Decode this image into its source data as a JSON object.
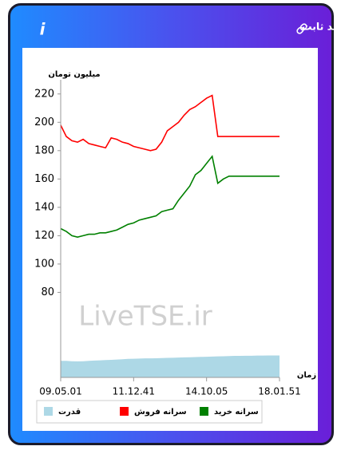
{
  "chart_data": {
    "type": "line",
    "title": "سرانه ی خرید و فروش حقیقی در صندوق های درآمد ثابت",
    "y_label": "میلیون تومان",
    "x_label": "زمان",
    "watermark": "LiveTSE.ir",
    "categories": [
      "09.05.01",
      null,
      null,
      null,
      null,
      null,
      null,
      null,
      null,
      null,
      null,
      null,
      null,
      "11.12.41",
      null,
      null,
      null,
      null,
      null,
      null,
      null,
      null,
      null,
      null,
      null,
      null,
      "14.10.05",
      null,
      null,
      null,
      null,
      null,
      null,
      null,
      null,
      null,
      null,
      null,
      null,
      "18.01.51"
    ],
    "ylim": [
      20,
      230
    ],
    "yticks": [
      80,
      100,
      120,
      140,
      160,
      180,
      200,
      220
    ],
    "y2lim": [
      0,
      18
    ],
    "series": [
      {
        "name": "سرانه خرید",
        "color": "#008000",
        "values": [
          125,
          123,
          120,
          119,
          120,
          121,
          121,
          122,
          122,
          123,
          124,
          126,
          128,
          129,
          131,
          132,
          133,
          134,
          137,
          138,
          139,
          145,
          150,
          155,
          163,
          166,
          171,
          176,
          157,
          160,
          162,
          162,
          162,
          162,
          162,
          162,
          162,
          162,
          162,
          162
        ]
      },
      {
        "name": "سرانه فروش",
        "color": "#ff0000",
        "values": [
          198,
          190,
          187,
          186,
          188,
          185,
          184,
          183,
          182,
          189,
          188,
          186,
          185,
          183,
          182,
          181,
          180,
          181,
          186,
          194,
          197,
          200,
          205,
          209,
          211,
          214,
          217,
          219,
          190,
          190,
          190,
          190,
          190,
          190,
          190,
          190,
          190,
          190,
          190,
          190
        ]
      },
      {
        "name": "قدرت",
        "color": "#add8e6",
        "type": "area",
        "axis": "y2",
        "values": [
          1.0,
          1.0,
          0.98,
          0.97,
          0.98,
          1.0,
          1.02,
          1.03,
          1.05,
          1.06,
          1.08,
          1.1,
          1.12,
          1.13,
          1.14,
          1.15,
          1.15,
          1.16,
          1.17,
          1.18,
          1.19,
          1.2,
          1.21,
          1.22,
          1.23,
          1.24,
          1.25,
          1.26,
          1.27,
          1.28,
          1.29,
          1.3,
          1.3,
          1.31,
          1.31,
          1.32,
          1.32,
          1.33,
          1.33,
          1.33
        ]
      }
    ]
  }
}
